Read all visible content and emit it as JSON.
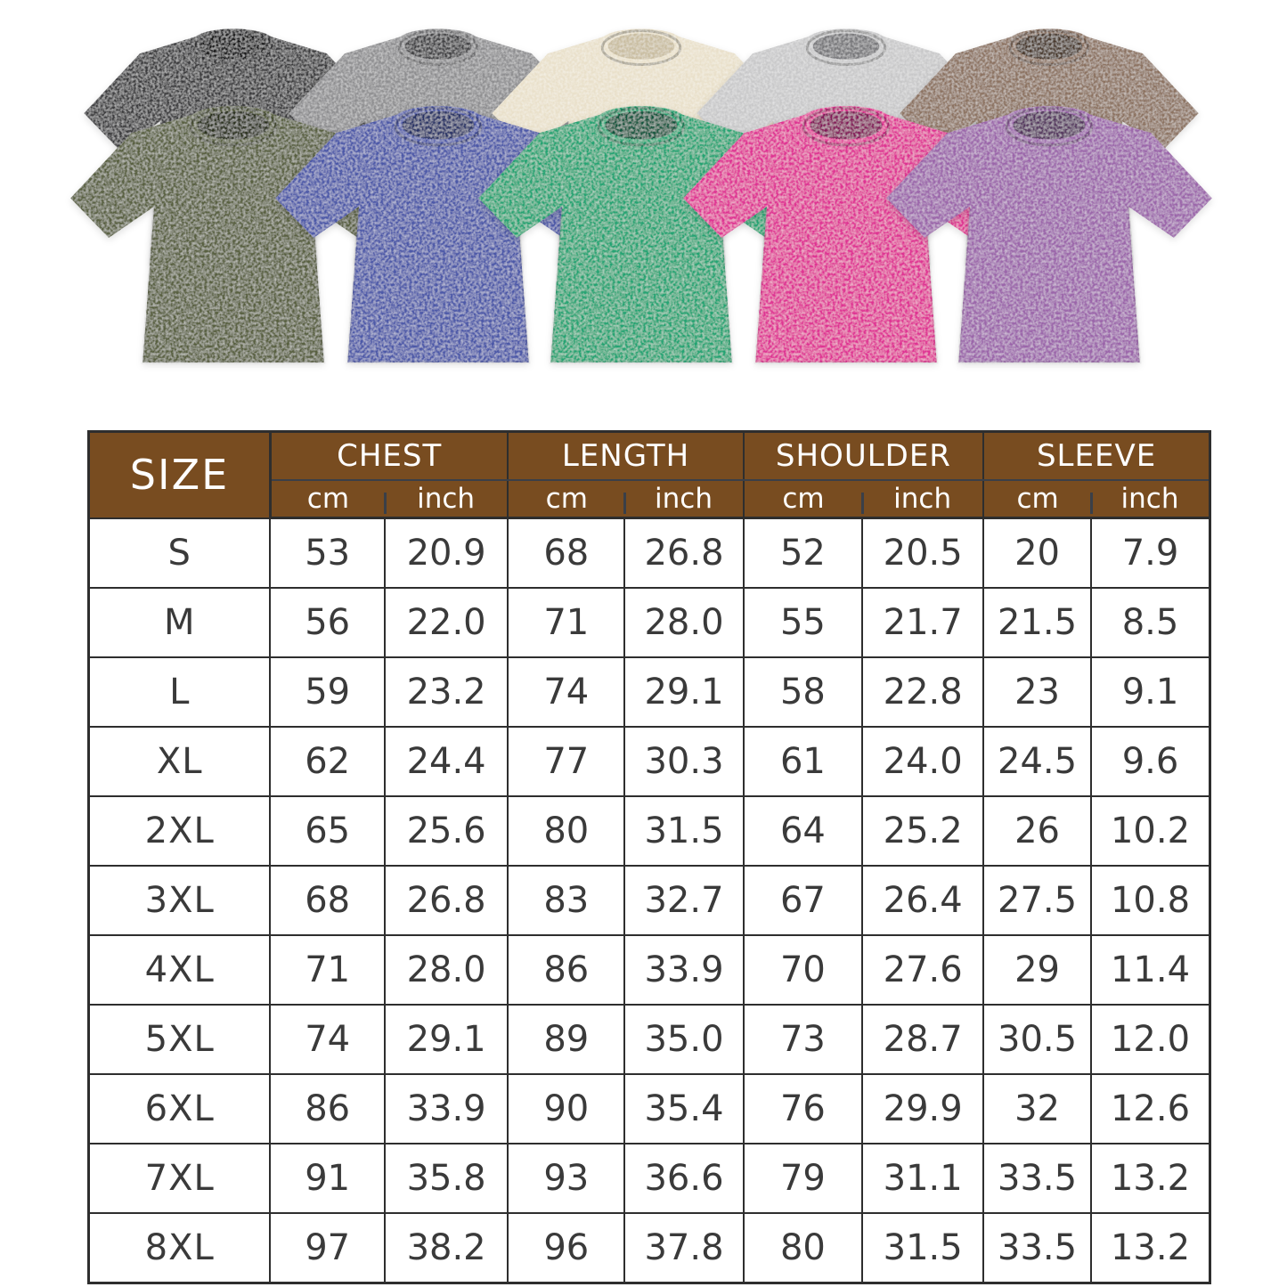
{
  "page": {
    "background": "#ffffff"
  },
  "accent": {
    "header_bg": "#784c20",
    "header_text": "#ffffff",
    "grid_line": "#2e2e2e",
    "cell_text": "#3a3a3a"
  },
  "shirts": {
    "back_row": [
      {
        "name": "black",
        "color": "#3b3b3d",
        "collar": "#131316"
      },
      {
        "name": "dark-gray",
        "color": "#8e8e90",
        "collar": "#3f3f42"
      },
      {
        "name": "cream",
        "color": "#e9e0ca",
        "collar": "#c9bda0"
      },
      {
        "name": "light-gray",
        "color": "#c8c8c9",
        "collar": "#77777a"
      },
      {
        "name": "brown",
        "color": "#8c7260",
        "collar": "#4a392c"
      }
    ],
    "front_row": [
      {
        "name": "army-green",
        "color": "#59603f",
        "collar": "#2b301c"
      },
      {
        "name": "blue",
        "color": "#4c58a8",
        "collar": "#263066"
      },
      {
        "name": "green",
        "color": "#22a473",
        "collar": "#0e573d"
      },
      {
        "name": "hot-pink",
        "color": "#df3093",
        "collar": "#84195a"
      },
      {
        "name": "purple",
        "color": "#9b65aa",
        "collar": "#55365f"
      }
    ]
  },
  "chart_data": {
    "type": "table",
    "corner_label": "SIZE",
    "column_groups": [
      "CHEST",
      "LENGTH",
      "SHOULDER",
      "SLEEVE"
    ],
    "unit_labels": [
      "cm",
      "inch"
    ],
    "rows": [
      [
        "S",
        "53",
        "20.9",
        "68",
        "26.8",
        "52",
        "20.5",
        "20",
        "7.9"
      ],
      [
        "M",
        "56",
        "22.0",
        "71",
        "28.0",
        "55",
        "21.7",
        "21.5",
        "8.5"
      ],
      [
        "L",
        "59",
        "23.2",
        "74",
        "29.1",
        "58",
        "22.8",
        "23",
        "9.1"
      ],
      [
        "XL",
        "62",
        "24.4",
        "77",
        "30.3",
        "61",
        "24.0",
        "24.5",
        "9.6"
      ],
      [
        "2XL",
        "65",
        "25.6",
        "80",
        "31.5",
        "64",
        "25.2",
        "26",
        "10.2"
      ],
      [
        "3XL",
        "68",
        "26.8",
        "83",
        "32.7",
        "67",
        "26.4",
        "27.5",
        "10.8"
      ],
      [
        "4XL",
        "71",
        "28.0",
        "86",
        "33.9",
        "70",
        "27.6",
        "29",
        "11.4"
      ],
      [
        "5XL",
        "74",
        "29.1",
        "89",
        "35.0",
        "73",
        "28.7",
        "30.5",
        "12.0"
      ],
      [
        "6XL",
        "86",
        "33.9",
        "90",
        "35.4",
        "76",
        "29.9",
        "32",
        "12.6"
      ],
      [
        "7XL",
        "91",
        "35.8",
        "93",
        "36.6",
        "79",
        "31.1",
        "33.5",
        "13.2"
      ],
      [
        "8XL",
        "97",
        "38.2",
        "96",
        "37.8",
        "80",
        "31.5",
        "33.5",
        "13.2"
      ]
    ]
  }
}
